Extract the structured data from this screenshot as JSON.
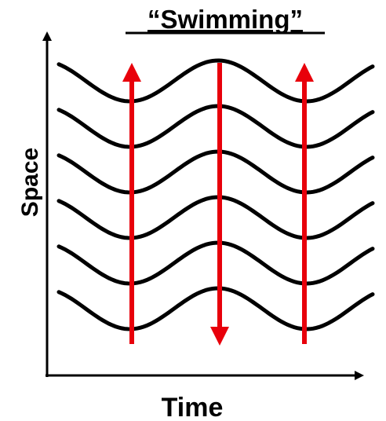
{
  "title": "“Swimming”",
  "y_axis_label": "Space",
  "x_axis_label": "Time"
}
